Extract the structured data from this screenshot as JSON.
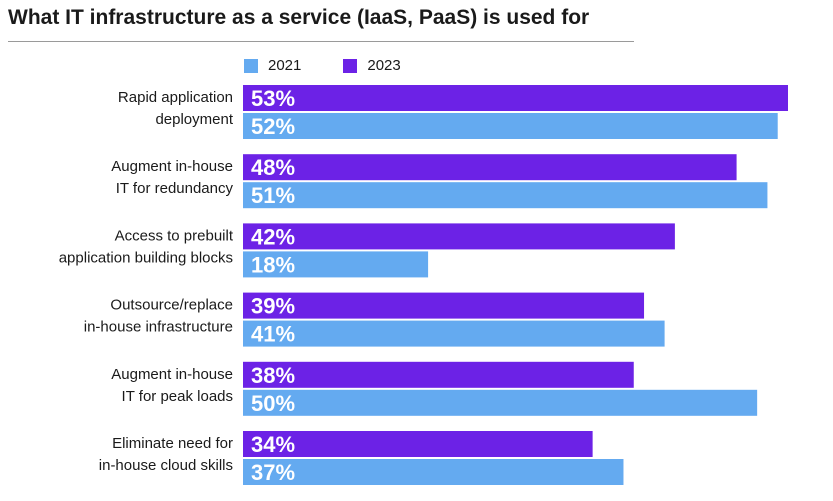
{
  "chart_data": {
    "type": "bar",
    "orientation": "horizontal",
    "title": "What IT infrastructure as a service (IaaS, PaaS) is used for",
    "categories": [
      [
        "Rapid application",
        "deployment"
      ],
      [
        "Augment in-house",
        "IT for redundancy"
      ],
      [
        "Access to prebuilt",
        "application building blocks"
      ],
      [
        "Outsource/replace",
        "in-house infrastructure"
      ],
      [
        "Augment in-house",
        "IT for peak loads"
      ],
      [
        "Eliminate need for",
        "in-house cloud skills"
      ]
    ],
    "series": [
      {
        "name": "2023",
        "color": "#6c22e6",
        "values": [
          53,
          48,
          42,
          39,
          38,
          34
        ]
      },
      {
        "name": "2021",
        "color": "#64aaf0",
        "values": [
          52,
          51,
          18,
          41,
          50,
          37
        ]
      }
    ],
    "value_suffix": "%",
    "legend_order": [
      "2021",
      "2023"
    ],
    "legend_position": "top",
    "xlim": [
      0,
      53
    ],
    "grid": false
  }
}
